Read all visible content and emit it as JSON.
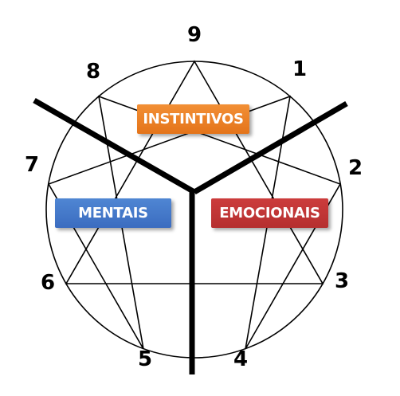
{
  "points": [
    {
      "number": "9"
    },
    {
      "number": "1"
    },
    {
      "number": "2"
    },
    {
      "number": "3"
    },
    {
      "number": "4"
    },
    {
      "number": "5"
    },
    {
      "number": "6"
    },
    {
      "number": "7"
    },
    {
      "number": "8"
    }
  ],
  "groups": {
    "instintivos": {
      "label": "INSTINTIVOS",
      "color": "#ea7f26"
    },
    "mentais": {
      "label": "MENTAIS",
      "color": "#4479c9"
    },
    "emocionais": {
      "label": "EMOCIONAIS",
      "color": "#c03535"
    }
  },
  "colors": {
    "lines": "#000000",
    "background": "#ffffff"
  }
}
